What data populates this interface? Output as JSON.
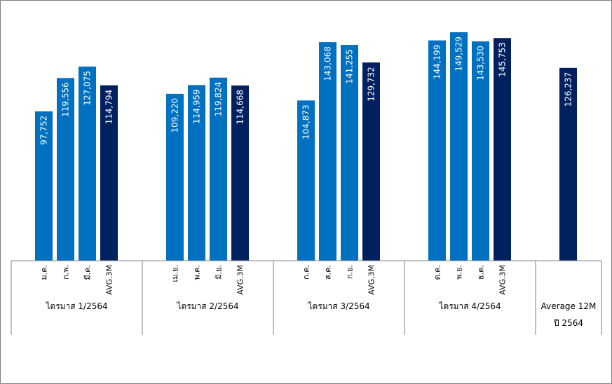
{
  "chart_data": {
    "type": "bar",
    "title": "",
    "xlabel": "",
    "ylabel": "",
    "ylim": [
      0,
      160000
    ],
    "grid": false,
    "legend": "none",
    "colors": {
      "month": "#0070c0",
      "avg": "#002060"
    },
    "groups": [
      {
        "label": "ไตรมาส 1/2564",
        "bars": [
          {
            "category": "ม.ค.",
            "value": 97752,
            "label": "97,752",
            "kind": "month"
          },
          {
            "category": "ก.พ.",
            "value": 119556,
            "label": "119,556",
            "kind": "month"
          },
          {
            "category": "มี.ค.",
            "value": 127075,
            "label": "127,075",
            "kind": "month"
          },
          {
            "category": "AVG.3M",
            "value": 114794,
            "label": "114,794",
            "kind": "avg"
          }
        ]
      },
      {
        "label": "ไตรมาส 2/2564",
        "bars": [
          {
            "category": "เม.ย.",
            "value": 109220,
            "label": "109,220",
            "kind": "month"
          },
          {
            "category": "พ.ค.",
            "value": 114959,
            "label": "114,959",
            "kind": "month"
          },
          {
            "category": "มิ.ย.",
            "value": 119824,
            "label": "119,824",
            "kind": "month"
          },
          {
            "category": "AVG.3M",
            "value": 114668,
            "label": "114,668",
            "kind": "avg"
          }
        ]
      },
      {
        "label": "ไตรมาส 3/2564",
        "bars": [
          {
            "category": "ก.ค.",
            "value": 104873,
            "label": "104,873",
            "kind": "month"
          },
          {
            "category": "ส.ค.",
            "value": 143068,
            "label": "143,068",
            "kind": "month"
          },
          {
            "category": "ก.ย.",
            "value": 141255,
            "label": "141,255",
            "kind": "month"
          },
          {
            "category": "AVG.3M",
            "value": 129732,
            "label": "129,732",
            "kind": "avg"
          }
        ]
      },
      {
        "label": "ไตรมาส 4/2564",
        "bars": [
          {
            "category": "ต.ค.",
            "value": 144199,
            "label": "144,199",
            "kind": "month"
          },
          {
            "category": "พ.ย.",
            "value": 149529,
            "label": "149,529",
            "kind": "month"
          },
          {
            "category": "ธ.ค.",
            "value": 143530,
            "label": "143,530",
            "kind": "month"
          },
          {
            "category": "AVG.3M",
            "value": 145753,
            "label": "145,753",
            "kind": "avg"
          }
        ]
      },
      {
        "label_lines": [
          "Average 12M",
          "ปี 2564"
        ],
        "bars": [
          {
            "category": "",
            "value": 126237,
            "label": "126,237",
            "kind": "avg"
          }
        ]
      }
    ]
  }
}
